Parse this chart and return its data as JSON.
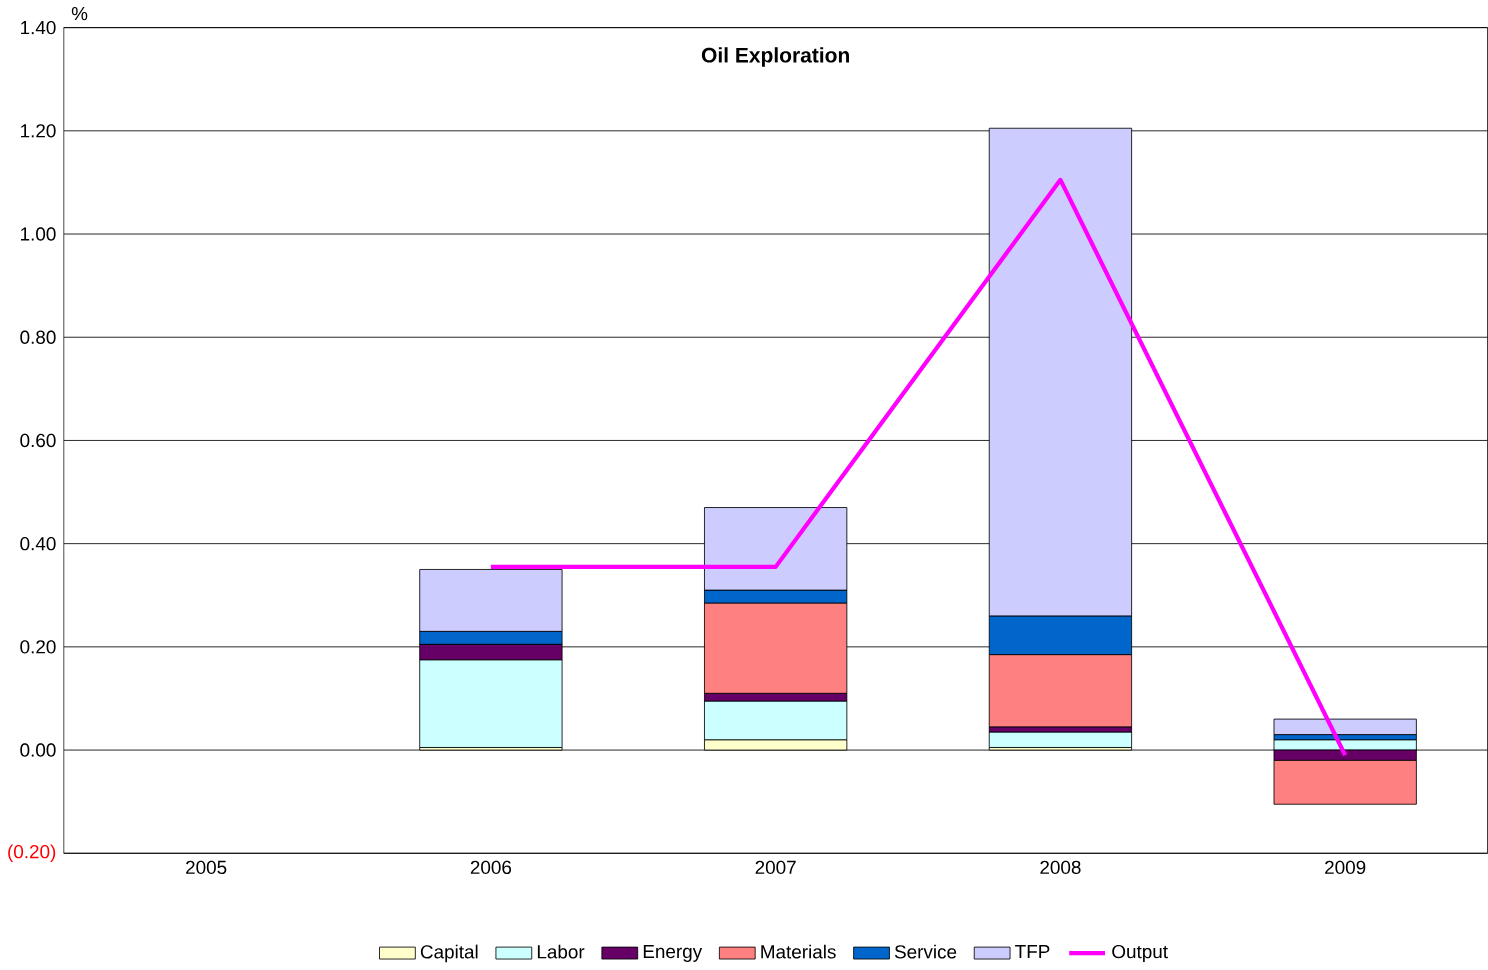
{
  "chart_data": {
    "type": "bar",
    "stacked": true,
    "title": "Oil Exploration",
    "ylabel": "%",
    "categories": [
      "2005",
      "2006",
      "2007",
      "2008",
      "2009"
    ],
    "series": [
      {
        "name": "Capital",
        "color": "#ffffcc",
        "values": [
          null,
          0.005,
          0.02,
          0.005,
          0
        ]
      },
      {
        "name": "Labor",
        "color": "#ccffff",
        "values": [
          null,
          0.17,
          0.075,
          0.03,
          0.02
        ]
      },
      {
        "name": "Energy",
        "color": "#660066",
        "values": [
          null,
          0.03,
          0.015,
          0.01,
          -0.02
        ]
      },
      {
        "name": "Materials",
        "color": "#ff8080",
        "values": [
          null,
          0,
          0.175,
          0.14,
          -0.085
        ]
      },
      {
        "name": "Service",
        "color": "#0066cc",
        "values": [
          null,
          0.025,
          0.025,
          0.075,
          0.01
        ]
      },
      {
        "name": "TFP",
        "color": "#ccccff",
        "values": [
          null,
          0.12,
          0.16,
          0.945,
          0.03
        ]
      },
      {
        "name": "Output",
        "type": "line",
        "color": "#ff00ff",
        "values": [
          null,
          0.355,
          0.355,
          1.105,
          -0.01
        ]
      }
    ],
    "ylim": [
      -0.2,
      1.4
    ],
    "yticks": [
      {
        "value": -0.2,
        "label": "(0.20)"
      },
      {
        "value": 0,
        "label": "0.00"
      },
      {
        "value": 0.2,
        "label": "0.20"
      },
      {
        "value": 0.4,
        "label": "0.40"
      },
      {
        "value": 0.6,
        "label": "0.60"
      },
      {
        "value": 0.8,
        "label": "0.80"
      },
      {
        "value": 1.0,
        "label": "1.00"
      },
      {
        "value": 1.2,
        "label": "1.20"
      },
      {
        "value": 1.4,
        "label": "1.40"
      }
    ],
    "grid": "y",
    "legend": "bottom",
    "marker": "none",
    "line_style": "solid"
  }
}
